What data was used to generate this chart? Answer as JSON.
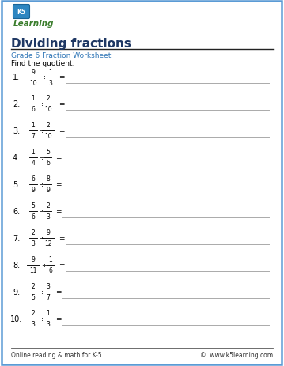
{
  "title": "Dividing fractions",
  "subtitle": "Grade 6 Fraction Worksheet",
  "instruction": "Find the quotient.",
  "problems": [
    {
      "num": "1",
      "n1": "9",
      "d1": "10",
      "n2": "1",
      "d2": "3"
    },
    {
      "num": "2",
      "n1": "1",
      "d1": "6",
      "n2": "2",
      "d2": "10"
    },
    {
      "num": "3",
      "n1": "1",
      "d1": "7",
      "n2": "2",
      "d2": "10"
    },
    {
      "num": "4",
      "n1": "1",
      "d1": "4",
      "n2": "5",
      "d2": "6"
    },
    {
      "num": "5",
      "n1": "6",
      "d1": "9",
      "n2": "8",
      "d2": "9"
    },
    {
      "num": "6",
      "n1": "5",
      "d1": "6",
      "n2": "2",
      "d2": "3"
    },
    {
      "num": "7",
      "n1": "2",
      "d1": "3",
      "n2": "9",
      "d2": "12"
    },
    {
      "num": "8",
      "n1": "9",
      "d1": "11",
      "n2": "1",
      "d2": "6"
    },
    {
      "num": "9",
      "n1": "2",
      "d1": "5",
      "n2": "3",
      "d2": "7"
    },
    {
      "num": "10",
      "n1": "2",
      "d1": "3",
      "n2": "1",
      "d2": "3"
    }
  ],
  "footer_left": "Online reading & math for K-5",
  "footer_right": "©  www.k5learning.com",
  "border_color": "#5b9bd5",
  "title_color": "#1f3864",
  "subtitle_color": "#2e75b6",
  "bg_color": "#ffffff",
  "answer_line_color": "#aaaaaa",
  "text_color": "#000000",
  "footer_line_color": "#555555",
  "logo_green": "#3a7d2c",
  "logo_box_color": "#4a90d9"
}
